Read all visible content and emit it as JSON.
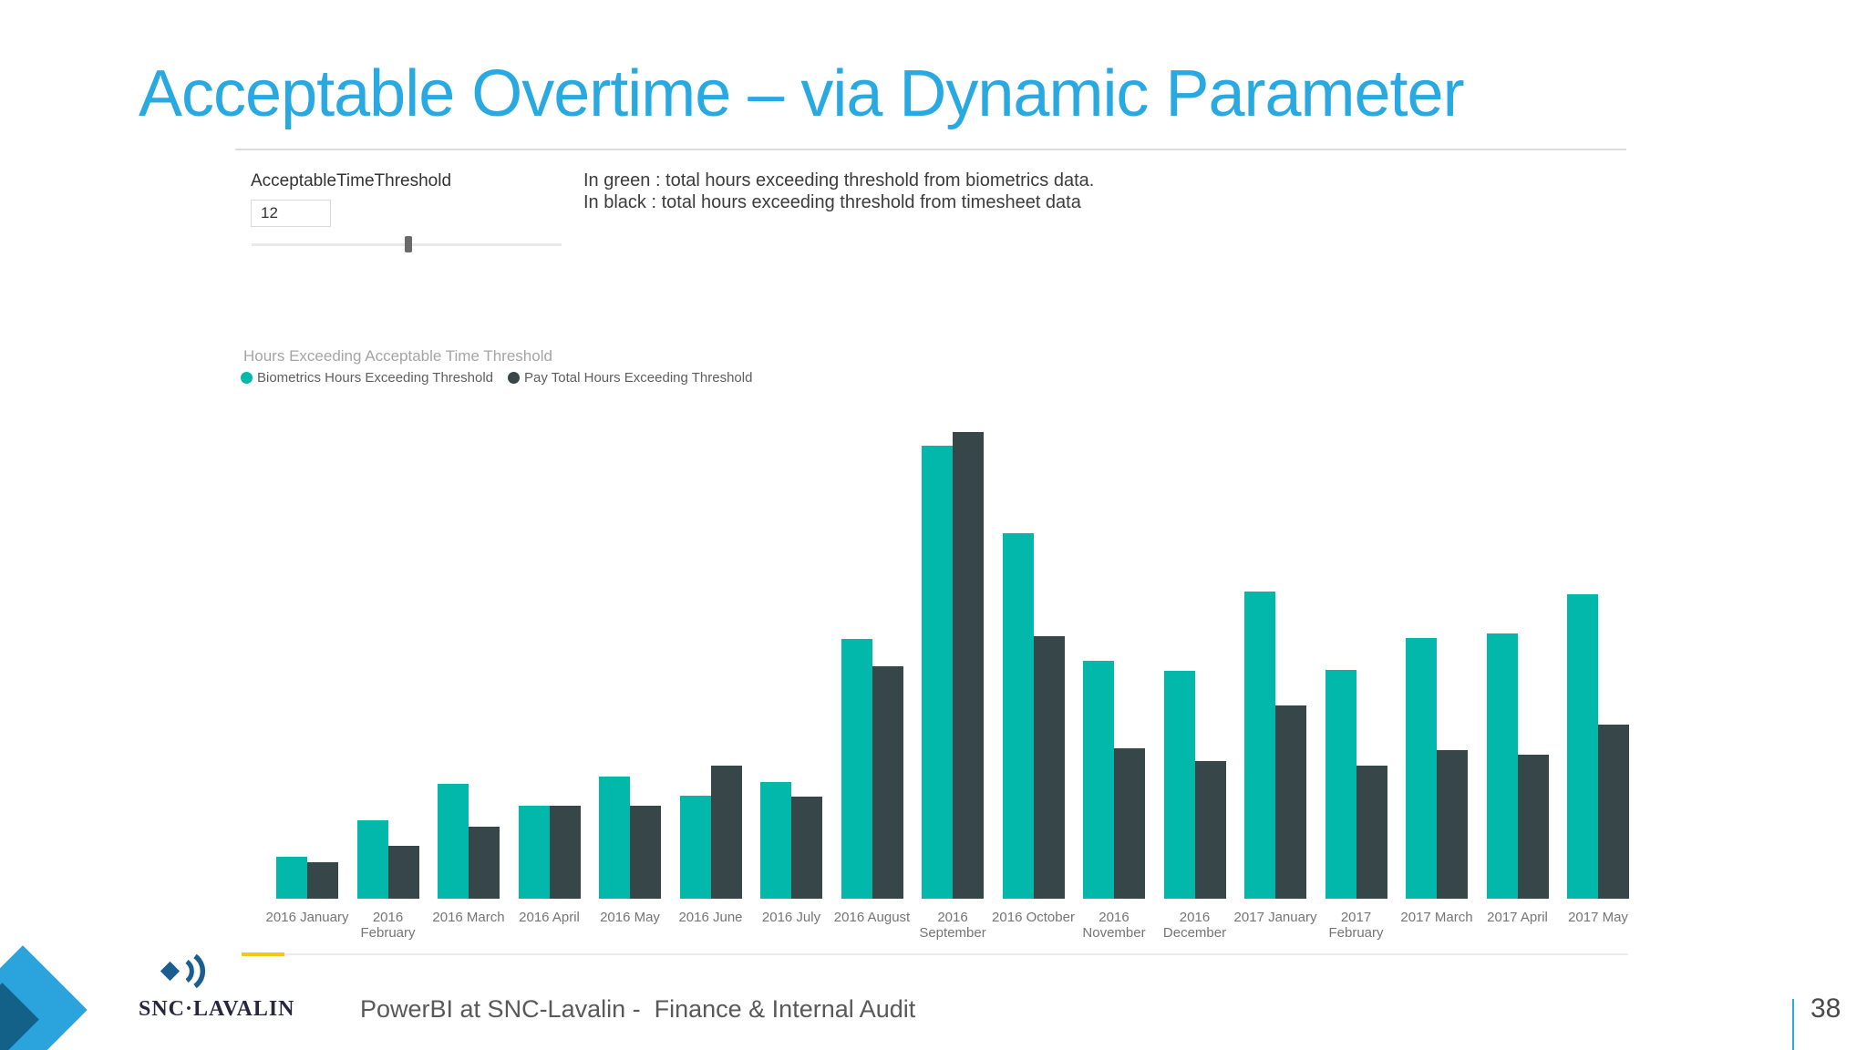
{
  "slide": {
    "title": "Acceptable Overtime – via Dynamic Parameter",
    "footer": {
      "text": "PowerBI at SNC-Lavalin -  Finance & Internal Audit",
      "page_number": "38",
      "logo_wordmark": "SNC·LAVALIN"
    }
  },
  "parameter_panel": {
    "label": "AcceptableTimeThreshold",
    "input_value": "12",
    "slider_percent": 50.5
  },
  "annotation": {
    "line1": "In green : total hours exceeding threshold from biometrics data.",
    "line2": "In black : total hours exceeding threshold from timesheet data"
  },
  "chart_data": {
    "type": "bar",
    "title": "Hours Exceeding Acceptable Time Threshold",
    "categories": [
      "2016 January",
      "2016 February",
      "2016 March",
      "2016 April",
      "2016 May",
      "2016 June",
      "2016 July",
      "2016 August",
      "2016 September",
      "2016 October",
      "2016 November",
      "2016 December",
      "2017 January",
      "2017 February",
      "2017 March",
      "2017 April",
      "2017 May"
    ],
    "category_label_lines": [
      [
        "2016 January"
      ],
      [
        "2016",
        "February"
      ],
      [
        "2016 March"
      ],
      [
        "2016 April"
      ],
      [
        "2016 May"
      ],
      [
        "2016 June"
      ],
      [
        "2016 July"
      ],
      [
        "2016 August"
      ],
      [
        "2016",
        "September"
      ],
      [
        "2016 October"
      ],
      [
        "2016",
        "November"
      ],
      [
        "2016",
        "December"
      ],
      [
        "2017 January"
      ],
      [
        "2017",
        "February"
      ],
      [
        "2017 March"
      ],
      [
        "2017 April"
      ],
      [
        "2017 May"
      ]
    ],
    "series": [
      {
        "name": "Biometrics Hours Exceeding Threshold",
        "color": "#01B8AA",
        "values": [
          46,
          86,
          126,
          102,
          133,
          113,
          128,
          284,
          495,
          399,
          260,
          249,
          336,
          250,
          285,
          290,
          333
        ]
      },
      {
        "name": "Pay Total Hours Exceeding Threshold",
        "color": "#374649",
        "values": [
          40,
          58,
          79,
          102,
          102,
          145,
          112,
          254,
          510,
          287,
          164,
          150,
          211,
          145,
          162,
          157,
          190
        ]
      }
    ],
    "y_axis": {
      "visible": false,
      "max_relative": 510
    },
    "xlabel": "",
    "ylabel": "",
    "legend_position": "top-left",
    "grid": false
  },
  "colors": {
    "title_blue": "#29A9E1",
    "bar_teal": "#01B8AA",
    "bar_dark": "#374649",
    "accent_yellow": "#F2C811",
    "page_rule_cyan": "#29ABE2",
    "logo_navy": "#1A5E8F",
    "corner_arrow_light_blue": "#2BA3DC",
    "corner_arrow_dark_blue": "#136089"
  }
}
